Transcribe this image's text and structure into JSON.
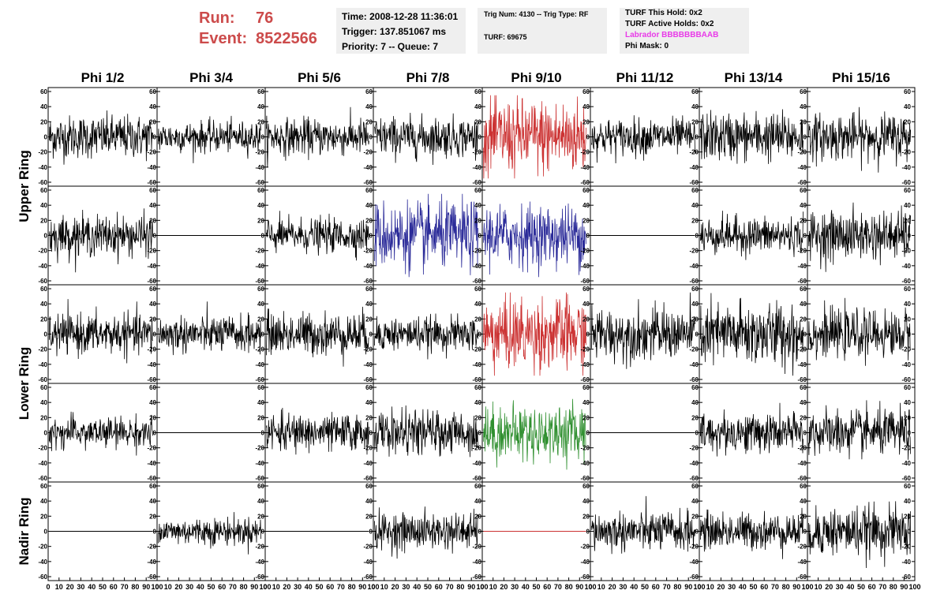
{
  "header": {
    "run_label": "Run:",
    "run_value": "76",
    "event_label": "Event:",
    "event_value": "8522566",
    "time": "Time: 2008-12-28 11:36:01",
    "trigger": "Trigger: 137.851067 ms",
    "priority": "Priority: 7 -- Queue: 7",
    "trig_num": "Trig Num: 4130 -- Trig Type: RF",
    "turf": "TURF: 69675",
    "turf_this_hold": "TURF This Hold: 0x2",
    "turf_active_holds": "TURF Active Holds: 0x2",
    "labrador": "Labrador BBBBBBBAAB",
    "phi_mask": "Phi Mask: 0"
  },
  "colors": {
    "run_text": "#cc4b4b",
    "labrador_text": "#e83ae8",
    "trace_default": "#000000",
    "trace_red": "#cc3333",
    "trace_blue": "#2b2b99",
    "trace_green": "#2f8f2f",
    "info_box_bg": "#efefef"
  },
  "chart_data": {
    "type": "line",
    "description_kind": "waveform grid",
    "columns": [
      "Phi 1/2",
      "Phi 3/4",
      "Phi 5/6",
      "Phi 7/8",
      "Phi 9/10",
      "Phi 11/12",
      "Phi 13/14",
      "Phi 15/16"
    ],
    "rows": [
      "Upper Ring",
      "Upper Ring",
      "Lower Ring",
      "Lower Ring",
      "Nadir Ring"
    ],
    "row_labels": [
      "Upper Ring",
      "Lower Ring",
      "Nadir Ring"
    ],
    "xlim": [
      0,
      100
    ],
    "ylim": [
      -60,
      60
    ],
    "x_ticks": [
      0,
      10,
      20,
      30,
      40,
      50,
      60,
      70,
      80,
      90,
      100
    ],
    "y_ticks": [
      -60,
      -40,
      -20,
      0,
      20,
      40,
      60
    ],
    "panels": [
      [
        {
          "amp": 14,
          "color": "black"
        },
        {
          "amp": 10,
          "color": "black"
        },
        {
          "amp": 12,
          "color": "black"
        },
        {
          "amp": 13,
          "color": "black"
        },
        {
          "amp": 25,
          "color": "red"
        },
        {
          "amp": 12,
          "color": "black"
        },
        {
          "amp": 16,
          "color": "black"
        },
        {
          "amp": 15,
          "color": "black"
        }
      ],
      [
        {
          "amp": 13,
          "color": "black"
        },
        {
          "amp": 0,
          "color": "black"
        },
        {
          "amp": 11,
          "color": "black"
        },
        {
          "amp": 22,
          "color": "blue"
        },
        {
          "amp": 20,
          "color": "blue"
        },
        {
          "amp": 0,
          "color": "black"
        },
        {
          "amp": 12,
          "color": "black"
        },
        {
          "amp": 16,
          "color": "black"
        }
      ],
      [
        {
          "amp": 13,
          "color": "black"
        },
        {
          "amp": 12,
          "color": "black"
        },
        {
          "amp": 14,
          "color": "black"
        },
        {
          "amp": 11,
          "color": "black"
        },
        {
          "amp": 24,
          "color": "red"
        },
        {
          "amp": 17,
          "color": "black"
        },
        {
          "amp": 21,
          "color": "black"
        },
        {
          "amp": 15,
          "color": "black"
        }
      ],
      [
        {
          "amp": 10,
          "color": "black"
        },
        {
          "amp": 0,
          "color": "black"
        },
        {
          "amp": 12,
          "color": "black"
        },
        {
          "amp": 14,
          "color": "black"
        },
        {
          "amp": 18,
          "color": "green"
        },
        {
          "amp": 0,
          "color": "black"
        },
        {
          "amp": 13,
          "color": "black"
        },
        {
          "amp": 15,
          "color": "black"
        }
      ],
      [
        {
          "amp": 0,
          "color": "black"
        },
        {
          "amp": 9,
          "color": "black"
        },
        {
          "amp": 0,
          "color": "black"
        },
        {
          "amp": 12,
          "color": "black"
        },
        {
          "amp": 0,
          "color": "red"
        },
        {
          "amp": 13,
          "color": "black"
        },
        {
          "amp": 12,
          "color": "black"
        },
        {
          "amp": 16,
          "color": "black"
        }
      ]
    ]
  }
}
